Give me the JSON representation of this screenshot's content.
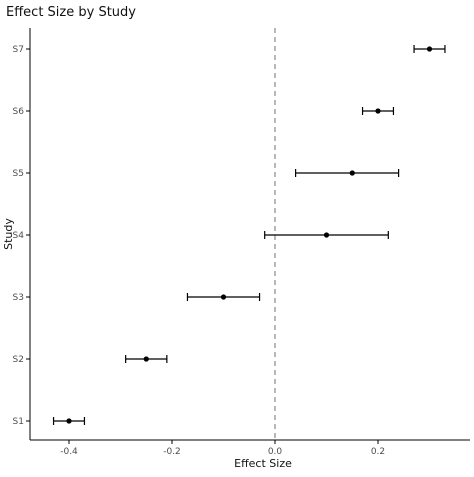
{
  "chart_data": {
    "type": "scatter",
    "title": "Effect Size by Study",
    "xlabel": "Effect Size",
    "ylabel": "Study",
    "xlim": [
      -0.45,
      0.35
    ],
    "x_ticks": [
      -0.4,
      -0.2,
      0.0,
      0.2
    ],
    "x_tick_labels": [
      "-0.4",
      "-0.2",
      "0.0",
      "0.2"
    ],
    "categories": [
      "S1",
      "S2",
      "S3",
      "S4",
      "S5",
      "S6",
      "S7"
    ],
    "points": [
      {
        "study": "S1",
        "estimate": -0.4,
        "lower": -0.43,
        "upper": -0.37
      },
      {
        "study": "S2",
        "estimate": -0.25,
        "lower": -0.29,
        "upper": -0.21
      },
      {
        "study": "S3",
        "estimate": -0.1,
        "lower": -0.17,
        "upper": -0.03
      },
      {
        "study": "S4",
        "estimate": 0.1,
        "lower": -0.02,
        "upper": 0.22
      },
      {
        "study": "S5",
        "estimate": 0.15,
        "lower": 0.04,
        "upper": 0.24
      },
      {
        "study": "S6",
        "estimate": 0.2,
        "lower": 0.17,
        "upper": 0.23
      },
      {
        "study": "S7",
        "estimate": 0.3,
        "lower": 0.27,
        "upper": 0.33
      }
    ],
    "reference_line": {
      "x": 0,
      "style": "dashed"
    },
    "grid": false,
    "colors": {
      "points": "#000000",
      "reference_line": "#888888",
      "axis": "#000000",
      "tick_label": "#4d4d4d"
    }
  }
}
